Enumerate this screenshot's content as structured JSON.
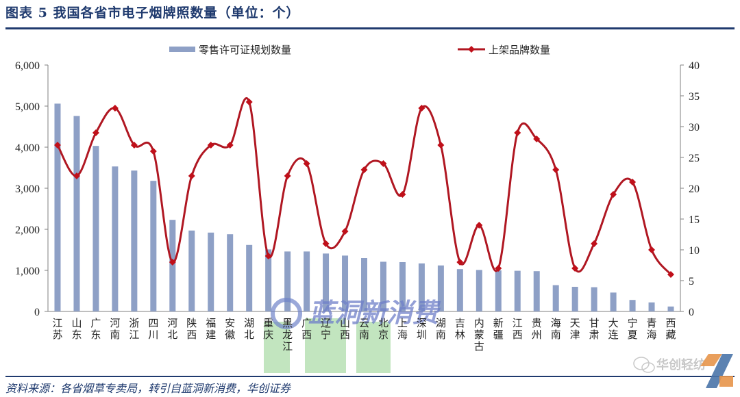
{
  "header": {
    "title": "图表 5   我国各省市电子烟牌照数量（单位：个）"
  },
  "footer": {
    "source": "资料来源：各省烟草专卖局，转引自蓝洞新消费，华创证券"
  },
  "watermarks": {
    "center_text": "蓝洞新消费",
    "corner_text": "华创轻纺"
  },
  "colors": {
    "bar": "#8ea0c6",
    "line": "#b01722",
    "title": "#1f3a6e",
    "axis": "#7f7f7f"
  },
  "chart_data": {
    "type": "bar+line",
    "title": "我国各省市电子烟牌照数量（单位：个）",
    "categories": [
      "江苏",
      "山东",
      "广东",
      "河南",
      "浙江",
      "四川",
      "河北",
      "陕西",
      "福建",
      "安徽",
      "湖北",
      "重庆",
      "黑龙江",
      "广西",
      "辽宁",
      "山西",
      "云南",
      "北京",
      "上海",
      "深圳",
      "湖南",
      "吉林",
      "内蒙古",
      "新疆",
      "江西",
      "贵州",
      "海南",
      "天津",
      "甘肃",
      "大连",
      "宁夏",
      "青海",
      "西藏"
    ],
    "series": [
      {
        "name": "零售许可证规划数量",
        "type": "bar",
        "axis": "left",
        "values": [
          5060,
          4760,
          4030,
          3530,
          3430,
          3180,
          2230,
          1970,
          1920,
          1880,
          1620,
          1510,
          1460,
          1460,
          1410,
          1360,
          1300,
          1210,
          1200,
          1170,
          1120,
          1030,
          1010,
          1000,
          990,
          980,
          640,
          600,
          590,
          460,
          280,
          220,
          120
        ]
      },
      {
        "name": "上架品牌数量",
        "type": "line",
        "axis": "right",
        "smooth": true,
        "marker": "diamond",
        "values": [
          27,
          22,
          29,
          33,
          27,
          26,
          8,
          22,
          27,
          27,
          34,
          9,
          22,
          24,
          11,
          13,
          23,
          24,
          19,
          33,
          27,
          8,
          14,
          7,
          29,
          28,
          23,
          7,
          11,
          19,
          21,
          10,
          6
        ]
      }
    ],
    "y_left": {
      "min": 0,
      "max": 6000,
      "ticks": [
        "0",
        "1,000",
        "2,000",
        "3,000",
        "4,000",
        "5,000",
        "6,000"
      ]
    },
    "y_right": {
      "min": 0,
      "max": 40,
      "ticks": [
        "0",
        "5",
        "10",
        "15",
        "20",
        "25",
        "30",
        "35",
        "40"
      ]
    },
    "xlabel": "",
    "ylabel": "",
    "grid": false,
    "legend_position": "top"
  }
}
